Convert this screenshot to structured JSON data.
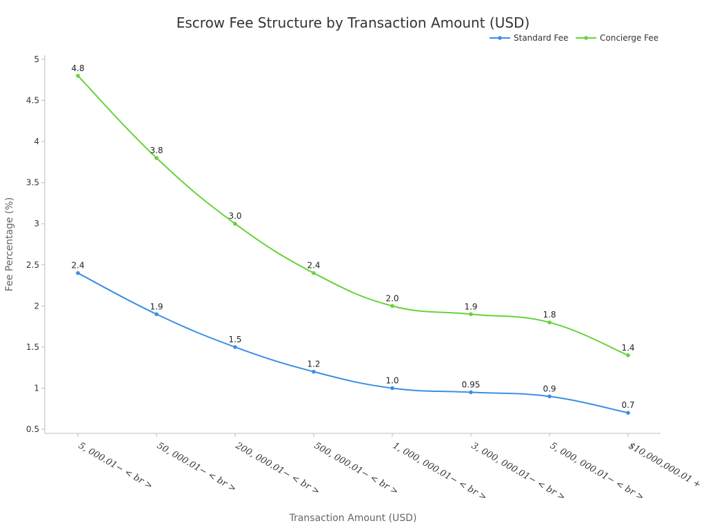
{
  "chart_data": {
    "type": "line",
    "title": "Escrow Fee Structure by Transaction Amount (USD)",
    "xlabel": "Transaction Amount (USD)",
    "ylabel": "Fee Percentage (%)",
    "categories": [
      "5, 000.01− < br >",
      "50, 000.01− < br >",
      "200, 000.01− < br >",
      "500, 000.01− < br >",
      "1, 000, 000.01− < br >",
      "3, 000, 000.01− < br >",
      "5, 000, 000.01− < br >",
      "$10,000,000.01 +"
    ],
    "series": [
      {
        "name": "Standard Fee",
        "color": "#3a8ee6",
        "values": [
          2.4,
          1.9,
          1.5,
          1.2,
          1.0,
          0.95,
          0.9,
          0.7
        ],
        "labels": [
          "2.4",
          "1.9",
          "1.5",
          "1.2",
          "1.0",
          "0.95",
          "0.9",
          "0.7"
        ]
      },
      {
        "name": "Concierge Fee",
        "color": "#66d23a",
        "values": [
          4.8,
          3.8,
          3.0,
          2.4,
          2.0,
          1.9,
          1.8,
          1.4
        ],
        "labels": [
          "4.8",
          "3.8",
          "3.0",
          "2.4",
          "2.0",
          "1.9",
          "1.8",
          "1.4"
        ]
      }
    ],
    "yticks": [
      "0.5",
      "1",
      "1.5",
      "2",
      "2.5",
      "3",
      "3.5",
      "4",
      "4.5",
      "5"
    ],
    "ylim": [
      0.45,
      5.05
    ],
    "legend_position": "top-right",
    "grid": false
  }
}
